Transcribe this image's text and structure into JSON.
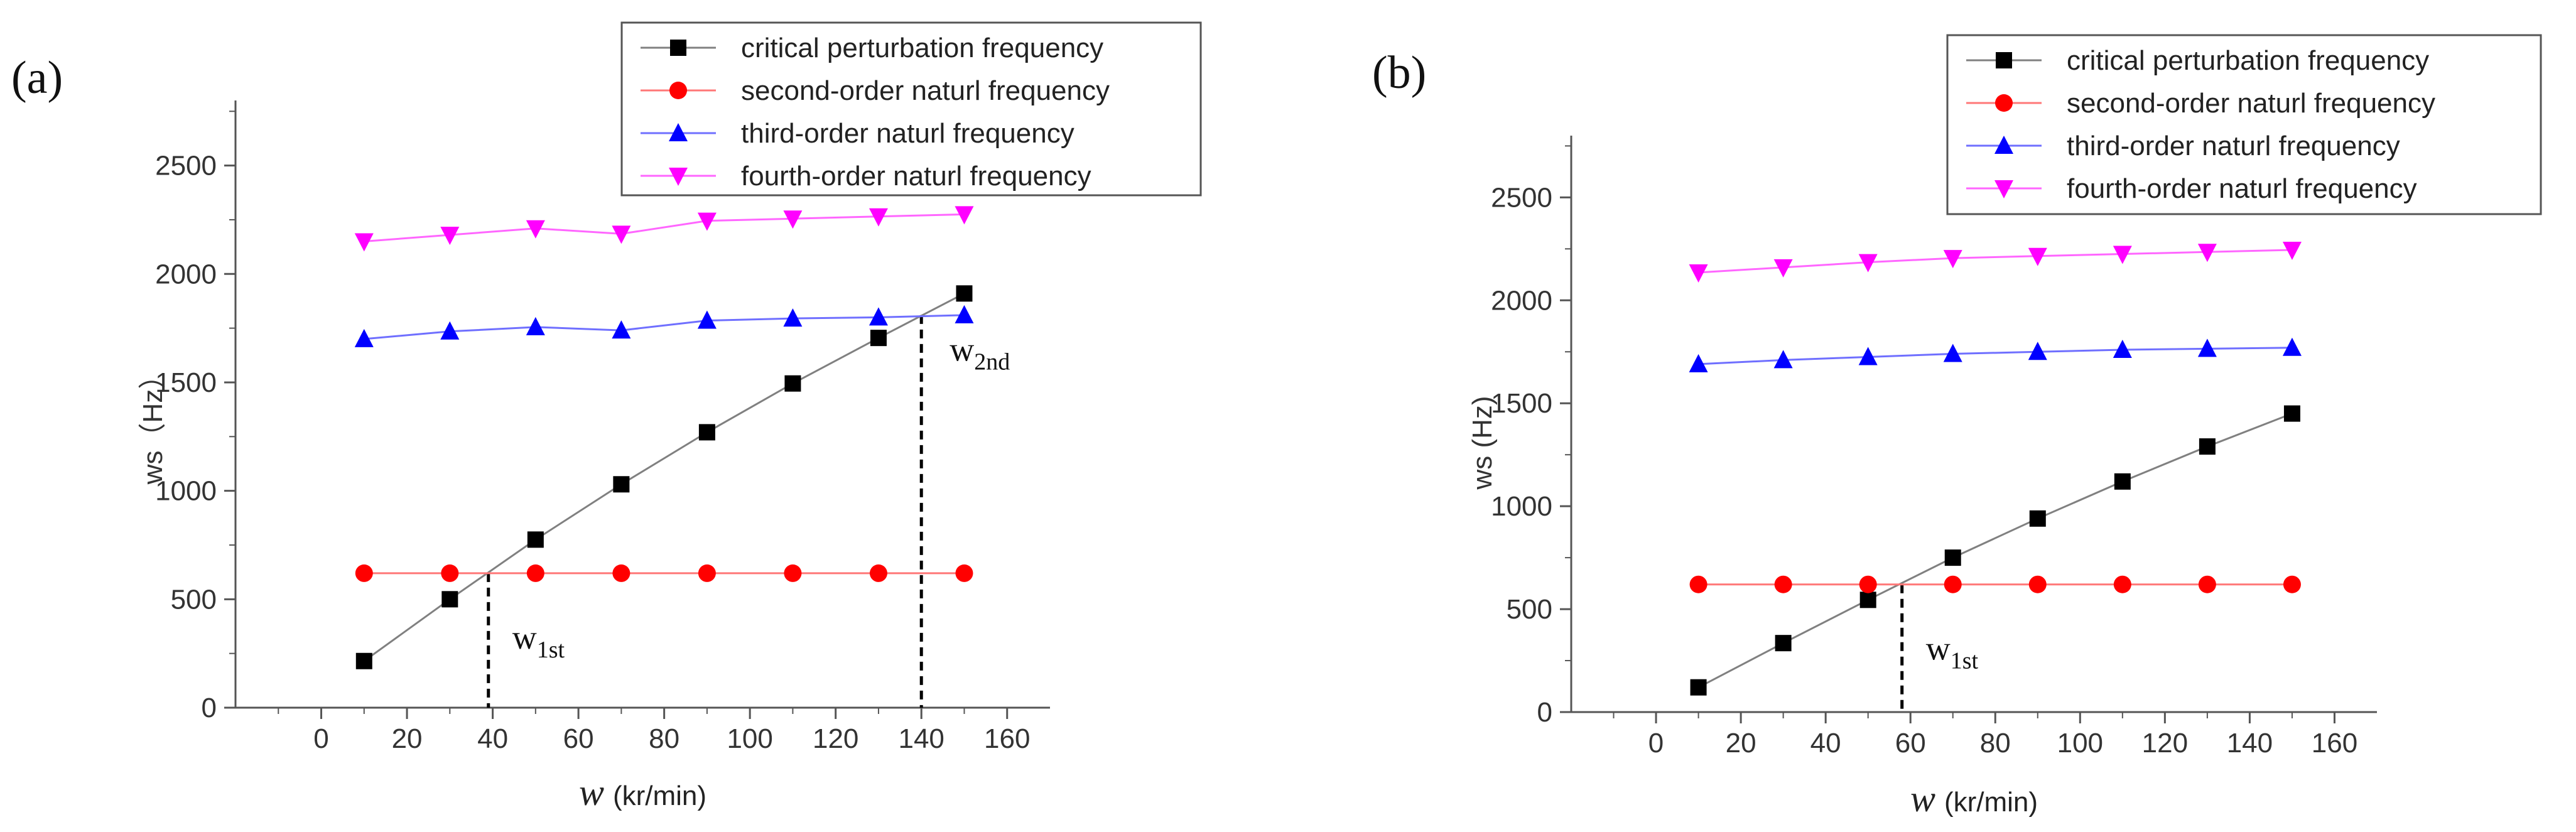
{
  "chart_data": [
    {
      "type": "line",
      "panel_label": "(a)",
      "title": "",
      "xlabel_symbol": "w",
      "xlabel_unit": "(kr/min)",
      "ylabel": "ws（Hz）",
      "xlim": [
        -20,
        170
      ],
      "ylim": [
        0,
        2800
      ],
      "xticks": [
        0,
        20,
        40,
        60,
        80,
        100,
        120,
        140,
        160
      ],
      "yticks": [
        0,
        500,
        1000,
        1500,
        2000,
        2500
      ],
      "x": [
        10,
        30,
        50,
        70,
        90,
        110,
        130,
        150
      ],
      "series": [
        {
          "name": "critical perturbation frequency",
          "color": "#000000",
          "line": "#808080",
          "marker": "square",
          "values": [
            215,
            500,
            775,
            1030,
            1270,
            1495,
            1705,
            1910
          ]
        },
        {
          "name": "second-order naturl frequency",
          "color": "#ff0000",
          "line": "#ff7777",
          "marker": "circle",
          "values": [
            620,
            620,
            620,
            620,
            620,
            620,
            620,
            620
          ]
        },
        {
          "name": "third-order naturl frequency",
          "color": "#0000ff",
          "line": "#6f6fff",
          "marker": "triangle-up",
          "values": [
            1700,
            1735,
            1755,
            1740,
            1785,
            1795,
            1800,
            1810
          ]
        },
        {
          "name": "fourth-order naturl frequency",
          "color": "#ff00ff",
          "line": "#ff66ff",
          "marker": "triangle-down",
          "values": [
            2150,
            2180,
            2210,
            2185,
            2245,
            2255,
            2265,
            2275
          ]
        }
      ],
      "annotations": [
        {
          "base": "w",
          "sub": "1st",
          "x": 39,
          "y": 620
        },
        {
          "base": "w",
          "sub": "2nd",
          "x": 140,
          "y": 1810
        }
      ]
    },
    {
      "type": "line",
      "panel_label": "(b)",
      "title": "",
      "xlabel_symbol": "w",
      "xlabel_unit": "(kr/min)",
      "ylabel": "ws (Hz)",
      "xlim": [
        -20,
        170
      ],
      "ylim": [
        0,
        2800
      ],
      "xticks": [
        0,
        20,
        40,
        60,
        80,
        100,
        120,
        140,
        160
      ],
      "yticks": [
        0,
        500,
        1000,
        1500,
        2000,
        2500
      ],
      "x": [
        10,
        30,
        50,
        70,
        90,
        110,
        130,
        150
      ],
      "series": [
        {
          "name": "critical perturbation frequency",
          "color": "#000000",
          "line": "#808080",
          "marker": "square",
          "values": [
            120,
            335,
            545,
            750,
            940,
            1120,
            1290,
            1450
          ]
        },
        {
          "name": "second-order naturl frequency",
          "color": "#ff0000",
          "line": "#ff7777",
          "marker": "circle",
          "values": [
            620,
            620,
            620,
            620,
            620,
            620,
            620,
            620
          ]
        },
        {
          "name": "third-order naturl frequency",
          "color": "#0000ff",
          "line": "#6f6fff",
          "marker": "triangle-up",
          "values": [
            1690,
            1710,
            1725,
            1740,
            1750,
            1760,
            1765,
            1770
          ]
        },
        {
          "name": "fourth-order naturl frequency",
          "color": "#ff00ff",
          "line": "#ff66ff",
          "marker": "triangle-down",
          "values": [
            2135,
            2160,
            2185,
            2205,
            2215,
            2225,
            2235,
            2245
          ]
        }
      ],
      "annotations": [
        {
          "base": "w",
          "sub": "1st",
          "x": 58,
          "y": 620
        }
      ]
    }
  ]
}
